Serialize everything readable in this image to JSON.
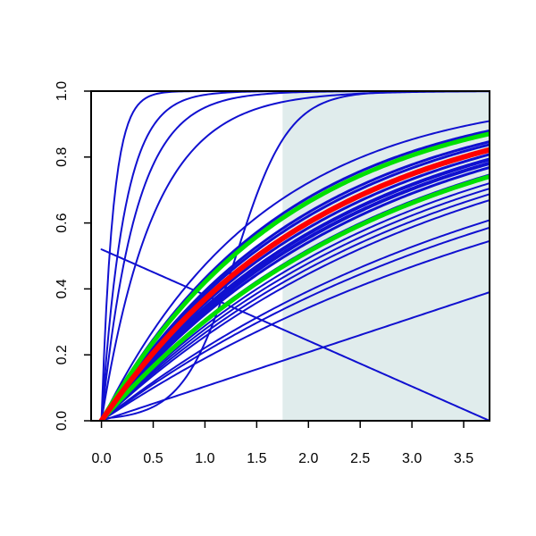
{
  "chart_data": {
    "type": "line",
    "title": "",
    "xlabel": "",
    "ylabel": "",
    "xlim": [
      -0.1,
      3.75
    ],
    "ylim": [
      0.0,
      1.0
    ],
    "x_ticks": [
      0.0,
      0.5,
      1.0,
      1.5,
      2.0,
      2.5,
      3.0,
      3.5
    ],
    "x_tick_labels": [
      "0.0",
      "0.5",
      "1.0",
      "1.5",
      "2.0",
      "2.5",
      "3.0",
      "3.5"
    ],
    "y_ticks": [
      0.0,
      0.2,
      0.4,
      0.6,
      0.8,
      1.0
    ],
    "y_tick_labels": [
      "0.0",
      "0.2",
      "0.4",
      "0.6",
      "0.8",
      "1.0"
    ],
    "grid": false,
    "legend": "none",
    "shaded_region": {
      "x_from": 1.75,
      "x_to": 3.75,
      "color": "#e0ecec"
    },
    "colors": {
      "blue": "#1010d0",
      "red": "#ff0000",
      "green": "#00e000",
      "frame": "#000000"
    },
    "series": [
      {
        "kind": "saturating",
        "k": 9.0,
        "color": "#1010d0",
        "width": 2
      },
      {
        "kind": "saturating",
        "k": 4.5,
        "color": "#1010d0",
        "width": 2
      },
      {
        "kind": "saturating",
        "k": 3.0,
        "color": "#1010d0",
        "width": 2
      },
      {
        "kind": "saturating",
        "k": 1.95,
        "color": "#1010d0",
        "width": 2
      },
      {
        "kind": "sigmoid",
        "a": 3.9,
        "b": 1.3,
        "color": "#1010d0",
        "width": 2
      },
      {
        "kind": "line",
        "y0": 0.52,
        "y1": 0.0,
        "color": "#1010d0",
        "width": 2
      },
      {
        "kind": "line",
        "y0": 0.0,
        "y1": 0.39,
        "color": "#1010d0",
        "width": 2
      },
      {
        "kind": "saturating",
        "k": 0.21,
        "color": "#1010d0",
        "width": 2
      },
      {
        "kind": "saturating",
        "k": 0.235,
        "color": "#1010d0",
        "width": 2
      },
      {
        "kind": "saturating",
        "k": 0.25,
        "color": "#1010d0",
        "width": 2
      },
      {
        "kind": "saturating",
        "k": 0.295,
        "color": "#1010d0",
        "width": 2
      },
      {
        "kind": "saturating",
        "k": 0.31,
        "color": "#1010d0",
        "width": 2
      },
      {
        "kind": "saturating",
        "k": 0.325,
        "color": "#1010d0",
        "width": 2
      },
      {
        "kind": "saturating",
        "k": 0.34,
        "color": "#1010d0",
        "width": 2
      },
      {
        "kind": "saturating",
        "k": 0.365,
        "color": "#1010d0",
        "width": 3
      },
      {
        "kind": "saturating",
        "k": 0.39,
        "color": "#1010d0",
        "width": 3
      },
      {
        "kind": "saturating",
        "k": 0.405,
        "color": "#1010d0",
        "width": 4
      },
      {
        "kind": "saturating",
        "k": 0.42,
        "color": "#1010d0",
        "width": 4
      },
      {
        "kind": "saturating",
        "k": 0.44,
        "color": "#1010d0",
        "width": 3
      },
      {
        "kind": "saturating",
        "k": 0.485,
        "color": "#1010d0",
        "width": 3
      },
      {
        "kind": "saturating",
        "k": 0.5,
        "color": "#1010d0",
        "width": 3
      },
      {
        "kind": "saturating",
        "k": 0.545,
        "color": "#1010d0",
        "width": 3
      },
      {
        "kind": "saturating",
        "k": 0.565,
        "color": "#1010d0",
        "width": 3
      },
      {
        "kind": "saturating",
        "k": 0.64,
        "color": "#1010d0",
        "width": 2
      },
      {
        "kind": "saturating",
        "k": 0.36,
        "color": "#00e000",
        "width": 5
      },
      {
        "kind": "saturating",
        "k": 0.545,
        "color": "#00e000",
        "width": 5
      },
      {
        "kind": "saturating",
        "k": 0.46,
        "color": "#ff0000",
        "width": 6
      }
    ]
  }
}
